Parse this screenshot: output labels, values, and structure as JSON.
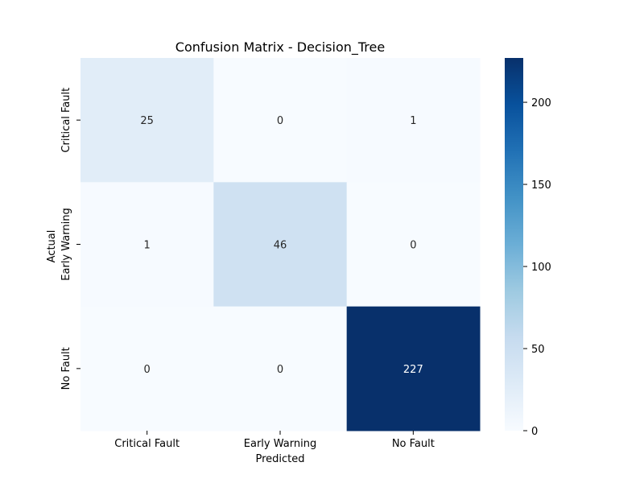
{
  "chart_data": {
    "type": "heatmap",
    "title": "Confusion Matrix - Decision_Tree",
    "xlabel": "Predicted",
    "ylabel": "Actual",
    "x_categories": [
      "Critical Fault",
      "Early Warning",
      "No Fault"
    ],
    "y_categories": [
      "Critical Fault",
      "Early Warning",
      "No Fault"
    ],
    "values": [
      [
        25,
        0,
        1
      ],
      [
        1,
        46,
        0
      ],
      [
        0,
        0,
        227
      ]
    ],
    "colormap": "Blues",
    "colorbar": {
      "min": 0,
      "max": 227,
      "ticks": [
        0,
        50,
        100,
        150,
        200
      ]
    },
    "colors": {
      "low": "#f7fbff",
      "high": "#08306b"
    }
  }
}
